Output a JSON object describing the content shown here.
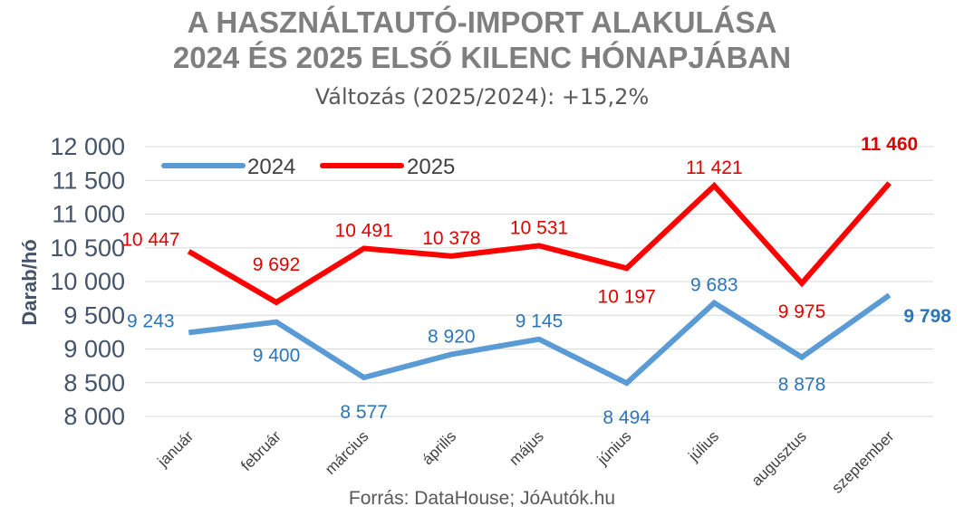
{
  "title_line1": "A HASZNÁLTAUTÓ-IMPORT ALAKULÁSA",
  "title_line2": "2024 ÉS 2025 ELSŐ KILENC HÓNAPJÁBAN",
  "subtitle": "Változás (2025/2024): +15,2%",
  "source": "Forrás: DataHouse; JóAutók.hu",
  "colors": {
    "series_2024": "#5b9bd5",
    "series_2025": "#ff0000",
    "label_2024": "#2e75b6",
    "label_2025": "#e00000",
    "grid": "#d9d9d9",
    "title": "#7f7f7f"
  },
  "chart_data": {
    "type": "line",
    "ylabel": "Darab/hó",
    "ylim": [
      8000,
      12000
    ],
    "yticks": [
      8000,
      8500,
      9000,
      9500,
      10000,
      10500,
      11000,
      11500,
      12000
    ],
    "ytick_labels": [
      "8 000",
      "8 500",
      "9 000",
      "9 500",
      "10 000",
      "10 500",
      "11 000",
      "11 500",
      "12 000"
    ],
    "grid": true,
    "legend_position": "top-left",
    "categories": [
      "január",
      "február",
      "március",
      "április",
      "május",
      "június",
      "július",
      "augusztus",
      "szeptember"
    ],
    "series": [
      {
        "name": "2024",
        "values": [
          9243,
          9400,
          8577,
          8920,
          9145,
          8494,
          9683,
          8878,
          9798
        ],
        "labels": [
          "9 243",
          "9 400",
          "8 577",
          "8 920",
          "9 145",
          "8 494",
          "9 683",
          "8 878",
          "9 798"
        ]
      },
      {
        "name": "2025",
        "values": [
          10447,
          9692,
          10491,
          10378,
          10531,
          10197,
          11421,
          9975,
          11460
        ],
        "labels": [
          "10 447",
          "9 692",
          "10 491",
          "10 378",
          "10 531",
          "10 197",
          "11 421",
          "9 975",
          "11 460"
        ]
      }
    ]
  }
}
